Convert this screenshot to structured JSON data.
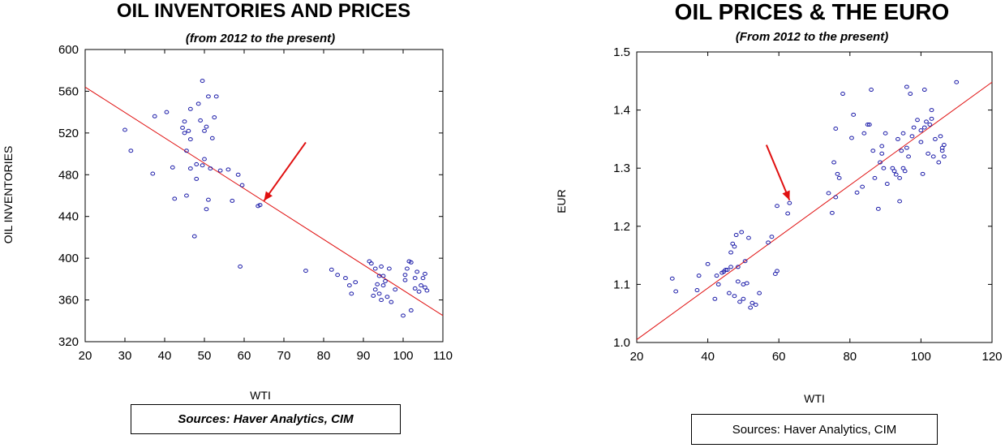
{
  "chart_data": [
    {
      "type": "scatter",
      "title": "OIL INVENTORIES AND PRICES",
      "subtitle": "(from 2012 to the present)",
      "xlabel": "WTI",
      "ylabel": "OIL INVENTORIES",
      "xlim": [
        20,
        110
      ],
      "ylim": [
        320,
        600
      ],
      "xticks": [
        "20",
        "30",
        "40",
        "50",
        "60",
        "70",
        "80",
        "90",
        "100",
        "110"
      ],
      "yticks": [
        "320",
        "360",
        "400",
        "440",
        "480",
        "520",
        "560",
        "600"
      ],
      "source": "Sources:  Haver Analytics, CIM",
      "marker_color": "#1a1aa8",
      "fit_line_color": "#e01010",
      "arrow_color": "#e01010",
      "fit_line": {
        "x": [
          20,
          110
        ],
        "y": [
          564,
          345
        ]
      },
      "arrow": {
        "from": [
          75.5,
          511
        ],
        "to": [
          65,
          455
        ]
      },
      "points": [
        [
          30,
          523
        ],
        [
          31.5,
          503
        ],
        [
          37,
          481
        ],
        [
          37.5,
          536
        ],
        [
          40.5,
          540
        ],
        [
          42,
          487
        ],
        [
          42.5,
          457
        ],
        [
          44.5,
          525
        ],
        [
          45,
          520
        ],
        [
          45,
          531
        ],
        [
          45.5,
          503
        ],
        [
          45.5,
          460
        ],
        [
          46,
          522
        ],
        [
          46.5,
          486
        ],
        [
          46.5,
          514
        ],
        [
          46.5,
          543
        ],
        [
          47.5,
          421
        ],
        [
          48,
          476
        ],
        [
          48,
          490
        ],
        [
          48.5,
          548
        ],
        [
          49,
          532
        ],
        [
          49.5,
          570
        ],
        [
          49.5,
          489
        ],
        [
          50,
          495
        ],
        [
          50,
          522
        ],
        [
          50.5,
          526
        ],
        [
          50.5,
          447
        ],
        [
          51,
          456
        ],
        [
          51,
          555
        ],
        [
          51.5,
          486
        ],
        [
          52,
          515
        ],
        [
          52.5,
          535
        ],
        [
          53,
          555
        ],
        [
          54,
          484
        ],
        [
          56,
          485
        ],
        [
          57,
          455
        ],
        [
          58.5,
          480
        ],
        [
          59,
          392
        ],
        [
          59.5,
          470
        ],
        [
          63.5,
          450
        ],
        [
          64,
          451
        ],
        [
          75.5,
          388
        ],
        [
          82,
          389
        ],
        [
          83.5,
          384
        ],
        [
          85.5,
          381
        ],
        [
          86.5,
          374
        ],
        [
          87,
          366
        ],
        [
          88,
          377
        ],
        [
          91.5,
          397
        ],
        [
          92,
          395
        ],
        [
          92.5,
          364
        ],
        [
          93,
          370
        ],
        [
          93,
          390
        ],
        [
          93.5,
          375
        ],
        [
          94,
          366
        ],
        [
          94,
          383
        ],
        [
          94.5,
          392
        ],
        [
          94.5,
          360
        ],
        [
          95,
          383
        ],
        [
          95,
          374
        ],
        [
          95.5,
          378
        ],
        [
          96,
          363
        ],
        [
          96.5,
          390
        ],
        [
          97,
          358
        ],
        [
          98,
          370
        ],
        [
          100,
          345
        ],
        [
          100.5,
          384
        ],
        [
          100.5,
          379
        ],
        [
          101,
          390
        ],
        [
          101.5,
          397
        ],
        [
          102,
          350
        ],
        [
          102,
          396
        ],
        [
          103,
          381
        ],
        [
          103,
          371
        ],
        [
          103.5,
          387
        ],
        [
          104,
          368
        ],
        [
          104.5,
          374
        ],
        [
          105,
          381
        ],
        [
          105.5,
          385
        ],
        [
          105.5,
          372
        ],
        [
          106,
          369
        ]
      ]
    },
    {
      "type": "scatter",
      "title": "OIL PRICES & THE EURO",
      "subtitle": "(From 2012 to the present)",
      "xlabel": "WTI",
      "ylabel": "EUR",
      "xlim": [
        20,
        120
      ],
      "ylim": [
        1.0,
        1.5
      ],
      "xticks": [
        "20",
        "40",
        "60",
        "80",
        "100",
        "120"
      ],
      "yticks": [
        "1.0",
        "1.1",
        "1.2",
        "1.3",
        "1.4",
        "1.5"
      ],
      "source": "Sources:  Haver Analytics, CIM",
      "marker_color": "#1a1aa8",
      "fit_line_color": "#e01010",
      "arrow_color": "#e01010",
      "fit_line": {
        "x": [
          20,
          120
        ],
        "y": [
          1.005,
          1.448
        ]
      },
      "arrow": {
        "from": [
          56.5,
          1.34
        ],
        "to": [
          63,
          1.245
        ]
      },
      "points": [
        [
          30,
          1.11
        ],
        [
          31,
          1.088
        ],
        [
          37,
          1.09
        ],
        [
          37.5,
          1.115
        ],
        [
          40,
          1.135
        ],
        [
          42,
          1.075
        ],
        [
          42.5,
          1.115
        ],
        [
          43,
          1.1
        ],
        [
          44,
          1.12
        ],
        [
          44.5,
          1.122
        ],
        [
          45,
          1.125
        ],
        [
          45.5,
          1.125
        ],
        [
          46,
          1.085
        ],
        [
          46.5,
          1.13
        ],
        [
          46.5,
          1.155
        ],
        [
          47,
          1.17
        ],
        [
          47.5,
          1.08
        ],
        [
          47.5,
          1.165
        ],
        [
          48,
          1.185
        ],
        [
          48.5,
          1.105
        ],
        [
          48.5,
          1.13
        ],
        [
          49,
          1.07
        ],
        [
          49.5,
          1.19
        ],
        [
          50,
          1.1
        ],
        [
          50,
          1.075
        ],
        [
          50.5,
          1.14
        ],
        [
          51,
          1.102
        ],
        [
          51.5,
          1.18
        ],
        [
          52,
          1.06
        ],
        [
          52.5,
          1.068
        ],
        [
          53.5,
          1.065
        ],
        [
          54.5,
          1.085
        ],
        [
          57,
          1.172
        ],
        [
          58,
          1.182
        ],
        [
          59,
          1.118
        ],
        [
          59.5,
          1.123
        ],
        [
          59.5,
          1.235
        ],
        [
          62.5,
          1.222
        ],
        [
          63,
          1.24
        ],
        [
          74,
          1.257
        ],
        [
          75,
          1.223
        ],
        [
          75.5,
          1.31
        ],
        [
          76,
          1.368
        ],
        [
          76,
          1.25
        ],
        [
          76.5,
          1.29
        ],
        [
          77,
          1.283
        ],
        [
          78,
          1.428
        ],
        [
          80.5,
          1.352
        ],
        [
          81,
          1.392
        ],
        [
          82,
          1.258
        ],
        [
          83.5,
          1.268
        ],
        [
          84,
          1.36
        ],
        [
          85,
          1.375
        ],
        [
          85.5,
          1.375
        ],
        [
          86,
          1.435
        ],
        [
          86.5,
          1.33
        ],
        [
          87,
          1.283
        ],
        [
          88,
          1.23
        ],
        [
          88.5,
          1.31
        ],
        [
          89,
          1.325
        ],
        [
          89,
          1.338
        ],
        [
          89.5,
          1.3
        ],
        [
          90,
          1.36
        ],
        [
          90.5,
          1.273
        ],
        [
          92,
          1.3
        ],
        [
          92.5,
          1.295
        ],
        [
          93,
          1.289
        ],
        [
          93.5,
          1.35
        ],
        [
          94,
          1.243
        ],
        [
          94,
          1.283
        ],
        [
          94.5,
          1.33
        ],
        [
          95,
          1.36
        ],
        [
          95,
          1.3
        ],
        [
          95.5,
          1.295
        ],
        [
          96,
          1.44
        ],
        [
          96,
          1.335
        ],
        [
          96.5,
          1.32
        ],
        [
          97,
          1.428
        ],
        [
          97.5,
          1.355
        ],
        [
          98,
          1.37
        ],
        [
          99,
          1.383
        ],
        [
          100,
          1.345
        ],
        [
          100,
          1.365
        ],
        [
          100.5,
          1.29
        ],
        [
          101,
          1.37
        ],
        [
          101,
          1.435
        ],
        [
          101.5,
          1.38
        ],
        [
          102,
          1.325
        ],
        [
          102.5,
          1.375
        ],
        [
          103,
          1.385
        ],
        [
          103,
          1.4
        ],
        [
          103.5,
          1.32
        ],
        [
          104,
          1.35
        ],
        [
          105,
          1.31
        ],
        [
          105.5,
          1.355
        ],
        [
          106,
          1.33
        ],
        [
          106,
          1.335
        ],
        [
          106.5,
          1.32
        ],
        [
          106.5,
          1.34
        ],
        [
          110,
          1.448
        ]
      ]
    }
  ]
}
